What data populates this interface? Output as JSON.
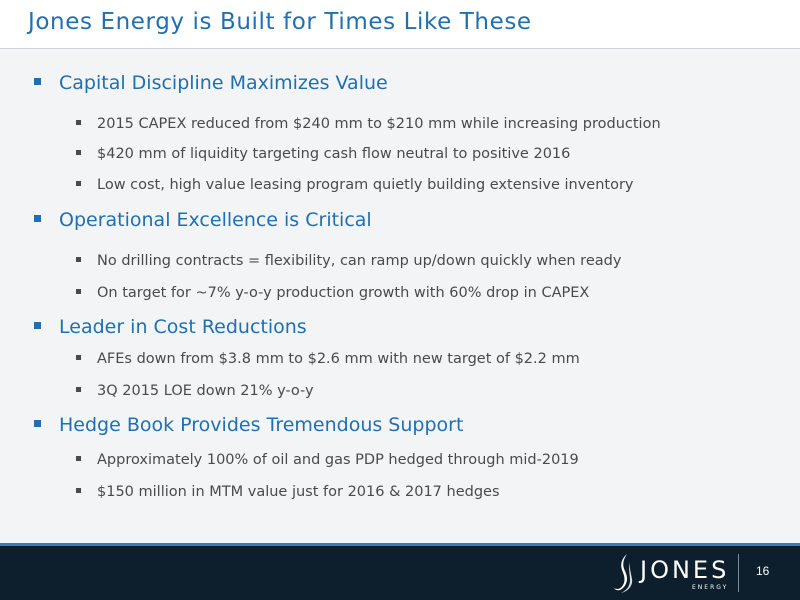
{
  "slide": {
    "title": "Jones Energy is Built for Times Like These",
    "page_number": "16"
  },
  "sections": [
    {
      "heading": "Capital Discipline Maximizes Value",
      "bullets": [
        "2015 CAPEX reduced from $240 mm to $210 mm while increasing production",
        "$420 mm of liquidity targeting cash flow neutral to positive 2016",
        "Low cost, high value leasing program quietly building extensive inventory"
      ]
    },
    {
      "heading": "Operational Excellence is Critical",
      "bullets": [
        "No drilling contracts = flexibility, can ramp up/down quickly when ready",
        "On target for ~7% y-o-y production growth with 60% drop in CAPEX"
      ]
    },
    {
      "heading": "Leader in Cost Reductions",
      "bullets": [
        "AFEs down from $3.8 mm to $2.6 mm with new target of $2.2 mm",
        "3Q 2015 LOE down 21% y-o-y"
      ]
    },
    {
      "heading": "Hedge Book Provides Tremendous Support",
      "bullets": [
        "Approximately 100% of oil and gas PDP hedged through mid-2019",
        "$150 million in MTM value just for 2016 & 2017 hedges"
      ]
    }
  ],
  "logo": {
    "wordmark": "JONES",
    "subtext": "ENERGY",
    "icon": "jones-energy-swoosh-icon"
  },
  "colors": {
    "accent_blue": "#1f6fb1",
    "footer_navy": "#0d1f2c",
    "content_bg": "#f3f4f6"
  }
}
